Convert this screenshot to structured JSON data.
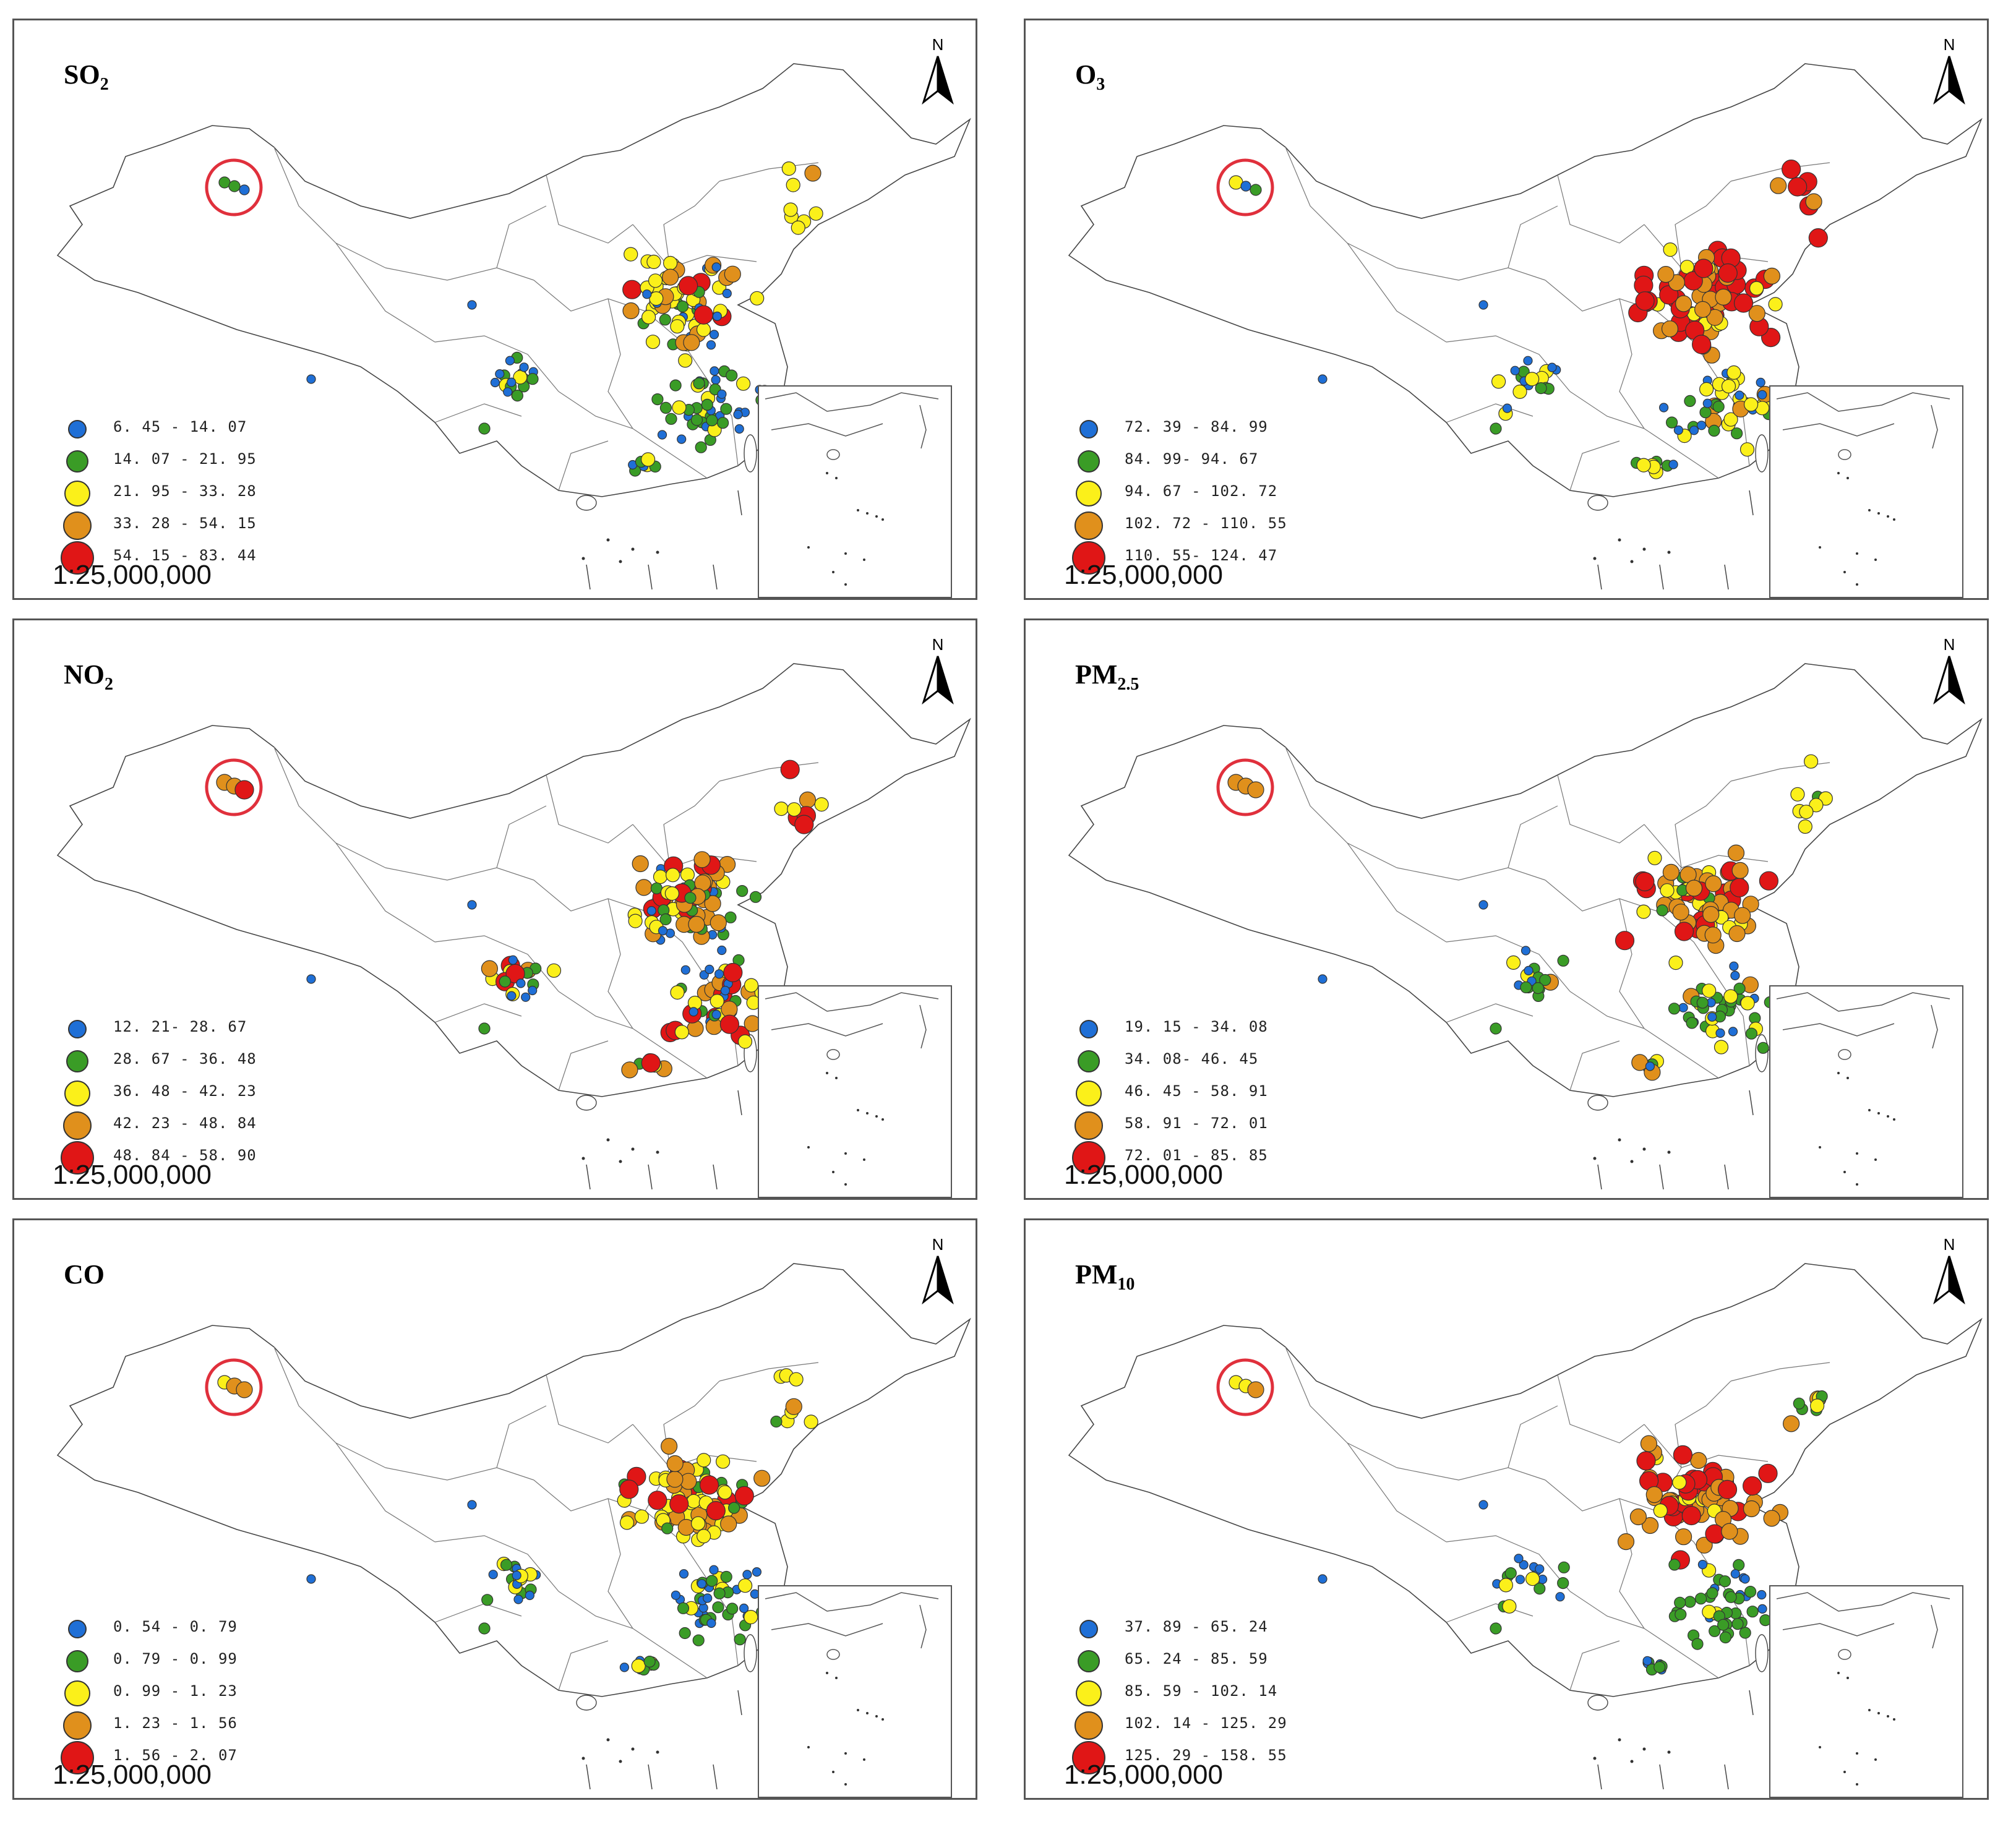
{
  "scale_text": "1:25,000,000",
  "north_label": "N",
  "colors": {
    "blue": "#1f6fd6",
    "green": "#3a9c26",
    "yellow": "#fbf01a",
    "orange": "#e0901c",
    "red": "#e01616",
    "ring": "#e0303c"
  },
  "panels": [
    {
      "id": "so2",
      "title_main": "SO",
      "title_sub": "2",
      "legend": [
        {
          "color": "blue",
          "label": "6. 45 - 14. 07"
        },
        {
          "color": "green",
          "label": "14. 07 - 21. 95"
        },
        {
          "color": "yellow",
          "label": "21. 95 - 33. 28"
        },
        {
          "color": "orange",
          "label": "33. 28 - 54. 15"
        },
        {
          "color": "red",
          "label": "54. 15 - 83. 44"
        }
      ],
      "xinjiang": [
        "green",
        "green",
        "blue"
      ],
      "north_mix": [
        1,
        1,
        4,
        2,
        1
      ],
      "south_mix": [
        5,
        4,
        1,
        0,
        0
      ],
      "ne_mix": [
        0,
        0,
        3,
        1,
        0
      ]
    },
    {
      "id": "o3",
      "title_main": "O",
      "title_sub": "3",
      "legend": [
        {
          "color": "blue",
          "label": "72. 39 - 84. 99"
        },
        {
          "color": "green",
          "label": "84. 99- 94. 67"
        },
        {
          "color": "yellow",
          "label": "94. 67 - 102. 72"
        },
        {
          "color": "orange",
          "label": "102. 72 - 110. 55"
        },
        {
          "color": "red",
          "label": "110. 55- 124. 47"
        }
      ],
      "xinjiang": [
        "yellow",
        "blue",
        "green"
      ],
      "north_mix": [
        0,
        0,
        1,
        3,
        4
      ],
      "south_mix": [
        3,
        3,
        3,
        1,
        0
      ],
      "ne_mix": [
        0,
        1,
        1,
        1,
        2
      ]
    },
    {
      "id": "no2",
      "title_main": "NO",
      "title_sub": "2",
      "legend": [
        {
          "color": "blue",
          "label": "12. 21- 28. 67"
        },
        {
          "color": "green",
          "label": "28. 67 - 36. 48"
        },
        {
          "color": "yellow",
          "label": "36. 48 - 42. 23"
        },
        {
          "color": "orange",
          "label": "42. 23 - 48. 84"
        },
        {
          "color": "red",
          "label": "48. 84 - 58. 90"
        }
      ],
      "xinjiang": [
        "orange",
        "orange",
        "red"
      ],
      "north_mix": [
        1,
        2,
        3,
        3,
        2
      ],
      "south_mix": [
        3,
        3,
        2,
        2,
        1
      ],
      "ne_mix": [
        0,
        1,
        2,
        1,
        1
      ]
    },
    {
      "id": "pm25",
      "title_main": "PM",
      "title_sub": "2.5",
      "legend": [
        {
          "color": "blue",
          "label": "19. 15 - 34. 08"
        },
        {
          "color": "green",
          "label": "34. 08- 46. 45"
        },
        {
          "color": "yellow",
          "label": "46. 45 - 58. 91"
        },
        {
          "color": "orange",
          "label": "58. 91 - 72. 01"
        },
        {
          "color": "red",
          "label": "72. 01 - 85. 85"
        }
      ],
      "xinjiang": [
        "orange",
        "orange",
        "orange"
      ],
      "north_mix": [
        0,
        1,
        2,
        5,
        2
      ],
      "south_mix": [
        3,
        4,
        3,
        1,
        0
      ],
      "ne_mix": [
        0,
        2,
        2,
        1,
        0
      ]
    },
    {
      "id": "co",
      "title_main": "CO",
      "title_sub": "",
      "legend": [
        {
          "color": "blue",
          "label": "0. 54 - 0. 79"
        },
        {
          "color": "green",
          "label": "0. 79 - 0. 99"
        },
        {
          "color": "yellow",
          "label": "0. 99 - 1. 23"
        },
        {
          "color": "orange",
          "label": "1. 23 - 1. 56"
        },
        {
          "color": "red",
          "label": "1. 56 - 2. 07"
        }
      ],
      "xinjiang": [
        "yellow",
        "orange",
        "orange"
      ],
      "north_mix": [
        0,
        1,
        3,
        4,
        2
      ],
      "south_mix": [
        4,
        4,
        2,
        0,
        0
      ],
      "ne_mix": [
        0,
        1,
        3,
        1,
        0
      ]
    },
    {
      "id": "pm10",
      "title_main": "PM",
      "title_sub": "10",
      "legend": [
        {
          "color": "blue",
          "label": "37. 89 - 65. 24"
        },
        {
          "color": "green",
          "label": "65. 24 - 85. 59"
        },
        {
          "color": "yellow",
          "label": "85. 59 - 102. 14"
        },
        {
          "color": "orange",
          "label": "102. 14 - 125. 29"
        },
        {
          "color": "red",
          "label": "125. 29 - 158. 55"
        }
      ],
      "xinjiang": [
        "yellow",
        "yellow",
        "orange"
      ],
      "north_mix": [
        0,
        0,
        2,
        5,
        3
      ],
      "south_mix": [
        3,
        5,
        2,
        0,
        0
      ],
      "ne_mix": [
        0,
        2,
        2,
        1,
        0
      ]
    }
  ]
}
